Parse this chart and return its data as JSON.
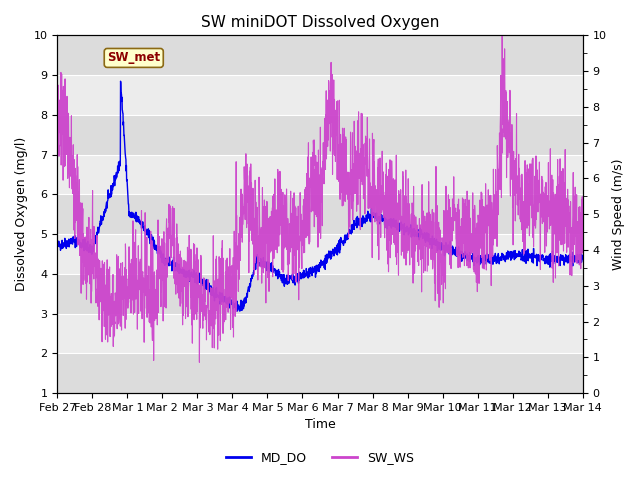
{
  "title": "SW miniDOT Dissolved Oxygen",
  "xlabel": "Time",
  "ylabel_left": "Dissolved Oxygen (mg/l)",
  "ylabel_right": "Wind Speed (m/s)",
  "ylim_left": [
    1.0,
    10.0
  ],
  "ylim_right": [
    0.0,
    10.0
  ],
  "annotation_text": "SW_met",
  "annotation_color": "#8B0000",
  "annotation_bg": "#FFFFCC",
  "annotation_border": "#8B6914",
  "line_md_do_color": "#0000EE",
  "line_sw_ws_color": "#CC44CC",
  "legend_labels": [
    "MD_DO",
    "SW_WS"
  ],
  "background_color": "#ffffff",
  "plot_bg_color": "#f0f0f0",
  "band_color_dark": "#dcdcdc",
  "band_color_light": "#ececec",
  "grid_color": "#ffffff",
  "x_tick_labels": [
    "Feb 27",
    "Feb 28",
    "Mar 1",
    "Mar 2",
    "Mar 3",
    "Mar 4",
    "Mar 5",
    "Mar 6",
    "Mar 7",
    "Mar 8",
    "Mar 9",
    "Mar 10",
    "Mar 11",
    "Mar 12",
    "Mar 13",
    "Mar 14"
  ],
  "x_tick_positions": [
    0,
    1,
    2,
    3,
    4,
    5,
    6,
    7,
    8,
    9,
    10,
    11,
    12,
    13,
    14,
    15
  ],
  "yticks_left": [
    1.0,
    2.0,
    3.0,
    4.0,
    5.0,
    6.0,
    7.0,
    8.0,
    9.0,
    10.0
  ],
  "yticks_right": [
    0.0,
    1.0,
    2.0,
    3.0,
    4.0,
    5.0,
    6.0,
    7.0,
    8.0,
    9.0,
    10.0
  ],
  "figsize": [
    6.4,
    4.8
  ],
  "dpi": 100
}
